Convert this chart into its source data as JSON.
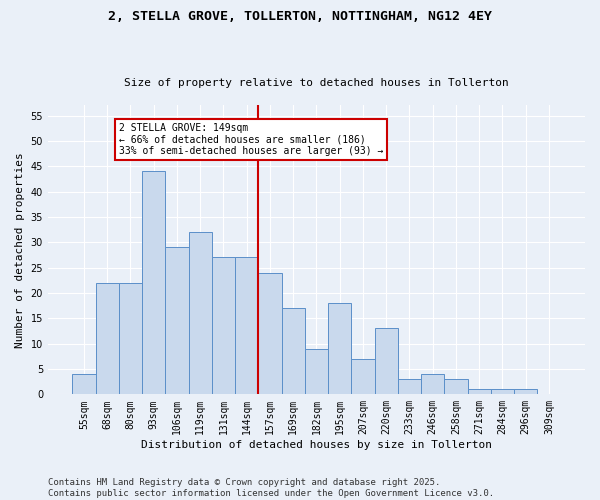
{
  "title": "2, STELLA GROVE, TOLLERTON, NOTTINGHAM, NG12 4EY",
  "subtitle": "Size of property relative to detached houses in Tollerton",
  "xlabel": "Distribution of detached houses by size in Tollerton",
  "ylabel": "Number of detached properties",
  "categories": [
    "55sqm",
    "68sqm",
    "80sqm",
    "93sqm",
    "106sqm",
    "119sqm",
    "131sqm",
    "144sqm",
    "157sqm",
    "169sqm",
    "182sqm",
    "195sqm",
    "207sqm",
    "220sqm",
    "233sqm",
    "246sqm",
    "258sqm",
    "271sqm",
    "284sqm",
    "296sqm",
    "309sqm"
  ],
  "values": [
    4,
    22,
    22,
    44,
    29,
    32,
    27,
    27,
    24,
    17,
    9,
    18,
    7,
    13,
    3,
    4,
    3,
    1,
    1,
    1,
    0
  ],
  "bar_color": "#c9d9ed",
  "bar_edge_color": "#5b8fc9",
  "vline_color": "#cc0000",
  "annotation_title": "2 STELLA GROVE: 149sqm",
  "annotation_line1": "← 66% of detached houses are smaller (186)",
  "annotation_line2": "33% of semi-detached houses are larger (93) →",
  "annotation_box_color": "#cc0000",
  "ylim": [
    0,
    57
  ],
  "yticks": [
    0,
    5,
    10,
    15,
    20,
    25,
    30,
    35,
    40,
    45,
    50,
    55
  ],
  "fig_background_color": "#eaf0f8",
  "background_color": "#eaf0f8",
  "grid_color": "#ffffff",
  "footer": "Contains HM Land Registry data © Crown copyright and database right 2025.\nContains public sector information licensed under the Open Government Licence v3.0.",
  "title_fontsize": 9.5,
  "subtitle_fontsize": 8,
  "axis_label_fontsize": 8,
  "tick_fontsize": 7,
  "footer_fontsize": 6.5,
  "annotation_fontsize": 7
}
